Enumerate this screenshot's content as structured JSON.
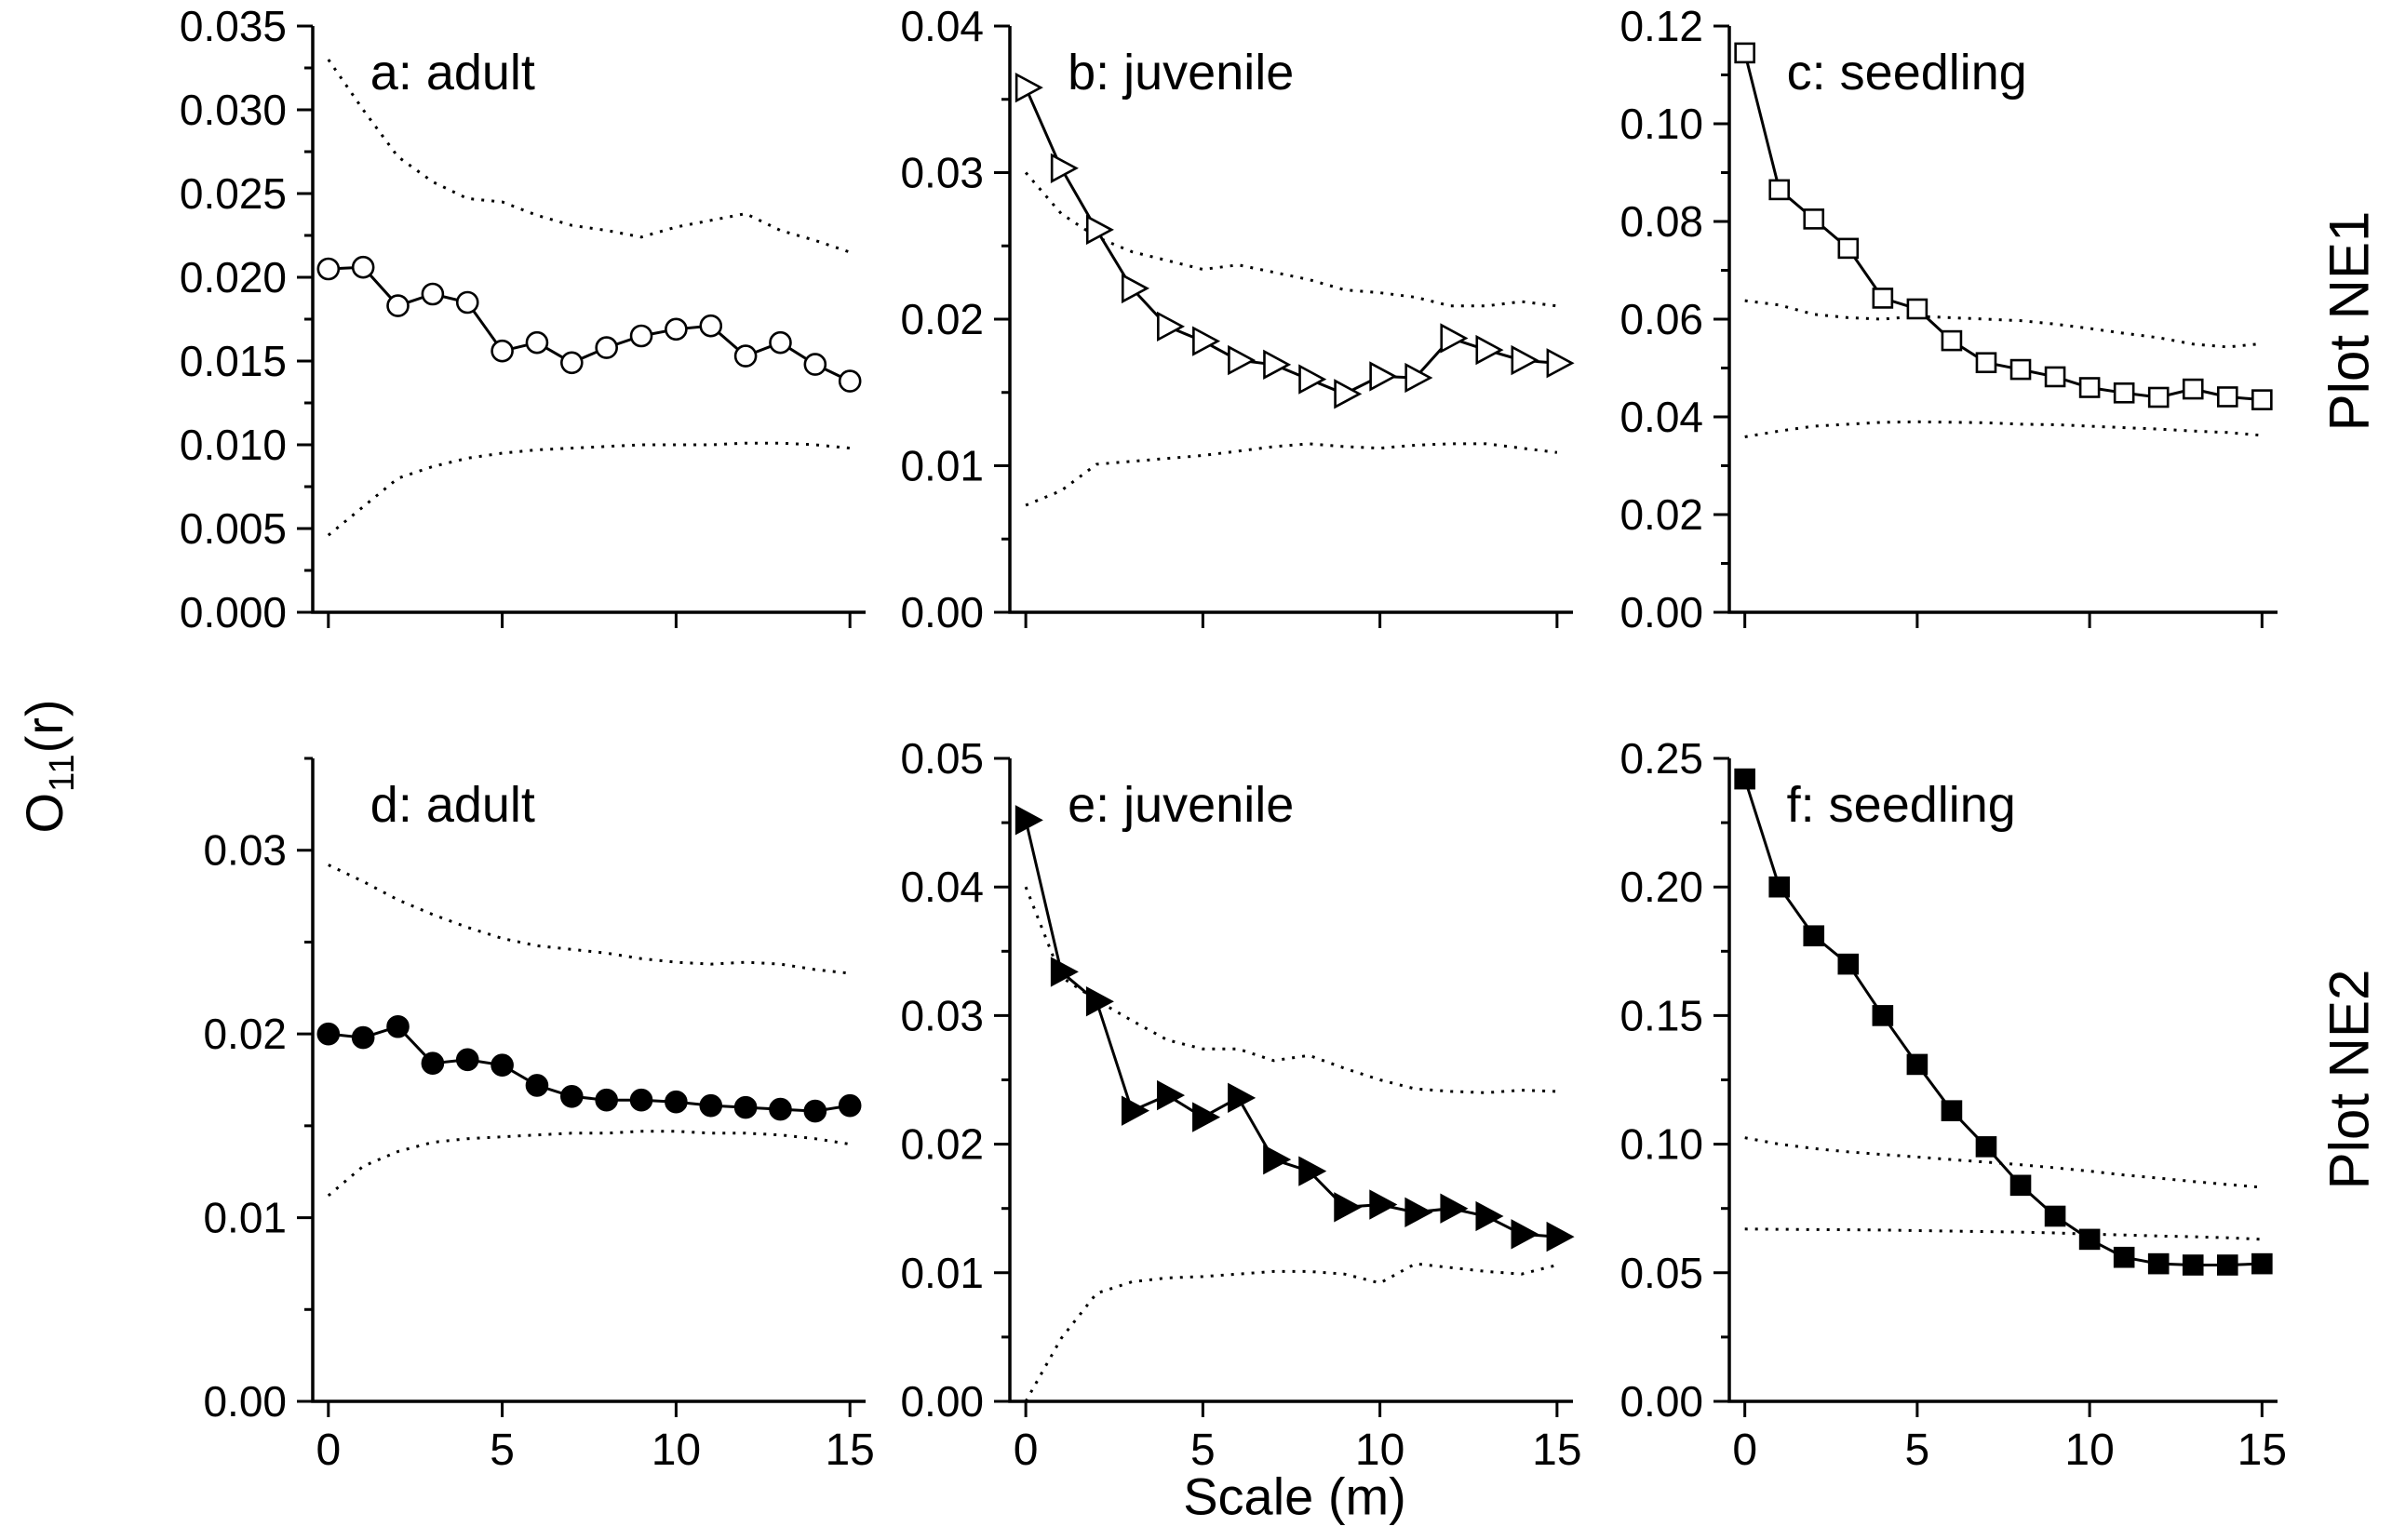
{
  "figure": {
    "xlabel": "Scale (m)",
    "ylabel": {
      "main": "O",
      "sub": "11",
      "rest": "(r)"
    },
    "row_labels": [
      "Plot NE1",
      "Plot NE2"
    ],
    "colors": {
      "foreground": "#000000",
      "background": "#ffffff"
    },
    "envelope_style": "dotted",
    "legend": "none"
  },
  "chart_data": [
    {
      "id": "a",
      "type": "line",
      "title": "a: adult",
      "plot_row": "Plot NE1",
      "marker": "open-circle",
      "x": [
        0,
        1,
        2,
        3,
        4,
        5,
        6,
        7,
        8,
        9,
        10,
        11,
        12,
        13,
        14,
        15
      ],
      "series": [
        0.0205,
        0.0206,
        0.0183,
        0.019,
        0.0185,
        0.0156,
        0.0161,
        0.0149,
        0.0158,
        0.0165,
        0.0169,
        0.0171,
        0.0153,
        0.0161,
        0.0148,
        0.0138
      ],
      "upper_envelope": [
        0.033,
        0.03,
        0.0272,
        0.0257,
        0.0247,
        0.0245,
        0.0237,
        0.0231,
        0.0228,
        0.0224,
        0.023,
        0.0234,
        0.0238,
        0.0228,
        0.0222,
        0.0215
      ],
      "lower_envelope": [
        0.0046,
        0.0063,
        0.008,
        0.0087,
        0.0092,
        0.0095,
        0.0097,
        0.0098,
        0.0099,
        0.01,
        0.01,
        0.01,
        0.0101,
        0.0101,
        0.01,
        0.0098
      ],
      "ylim": [
        0,
        0.035
      ],
      "ytick_step": 0.005,
      "yminor_step": 0.0025,
      "ytick_labels": [
        "0.000",
        "0.005",
        "0.010",
        "0.015",
        "0.020",
        "0.025",
        "0.030",
        "0.035"
      ],
      "xticks": [
        0,
        5,
        10,
        15
      ],
      "xtick_labels": [
        "0",
        "5",
        "10",
        "15"
      ],
      "show_xtick_labels": false
    },
    {
      "id": "b",
      "type": "line",
      "title": "b: juvenile",
      "plot_row": "Plot NE1",
      "marker": "open-triangle-right",
      "x": [
        0,
        1,
        2,
        3,
        4,
        5,
        6,
        7,
        8,
        9,
        10,
        11,
        12,
        13,
        14,
        15
      ],
      "series": [
        0.0358,
        0.0303,
        0.0261,
        0.0221,
        0.0195,
        0.0185,
        0.0172,
        0.0169,
        0.0159,
        0.0149,
        0.0161,
        0.016,
        0.0187,
        0.0179,
        0.0172,
        0.017
      ],
      "upper_envelope": [
        0.03,
        0.0272,
        0.0256,
        0.0246,
        0.024,
        0.0234,
        0.0237,
        0.0232,
        0.0227,
        0.022,
        0.0218,
        0.0215,
        0.0209,
        0.0209,
        0.0212,
        0.0209
      ],
      "lower_envelope": [
        0.0073,
        0.0083,
        0.0101,
        0.0103,
        0.0105,
        0.0107,
        0.011,
        0.0113,
        0.0115,
        0.0113,
        0.0112,
        0.0114,
        0.0115,
        0.0115,
        0.0112,
        0.0109
      ],
      "ylim": [
        0,
        0.04
      ],
      "ytick_step": 0.01,
      "yminor_step": 0.005,
      "ytick_labels": [
        "0.00",
        "0.01",
        "0.02",
        "0.03",
        "0.04"
      ],
      "xticks": [
        0,
        5,
        10,
        15
      ],
      "xtick_labels": [
        "0",
        "5",
        "10",
        "15"
      ],
      "show_xtick_labels": false
    },
    {
      "id": "c",
      "type": "line",
      "title": "c: seedling",
      "plot_row": "Plot NE1",
      "marker": "open-square",
      "x": [
        0,
        1,
        2,
        3,
        4,
        5,
        6,
        7,
        8,
        9,
        10,
        11,
        12,
        13,
        14,
        15
      ],
      "series": [
        0.1145,
        0.0865,
        0.0805,
        0.0745,
        0.0643,
        0.0621,
        0.0556,
        0.0511,
        0.0497,
        0.0482,
        0.046,
        0.0449,
        0.044,
        0.0457,
        0.0441,
        0.0435
      ],
      "upper_envelope": [
        0.0638,
        0.0629,
        0.061,
        0.0603,
        0.06,
        0.0606,
        0.0603,
        0.06,
        0.0597,
        0.059,
        0.0581,
        0.0571,
        0.0562,
        0.0549,
        0.0543,
        0.055
      ],
      "lower_envelope": [
        0.0359,
        0.0371,
        0.0381,
        0.0385,
        0.0389,
        0.039,
        0.0389,
        0.0388,
        0.0385,
        0.0384,
        0.0381,
        0.0378,
        0.0375,
        0.0371,
        0.0368,
        0.0362
      ],
      "ylim": [
        0,
        0.12
      ],
      "ytick_step": 0.02,
      "yminor_step": 0.01,
      "ytick_labels": [
        "0.00",
        "0.02",
        "0.04",
        "0.06",
        "0.08",
        "0.10",
        "0.12"
      ],
      "xticks": [
        0,
        5,
        10,
        15
      ],
      "xtick_labels": [
        "0",
        "5",
        "10",
        "15"
      ],
      "show_xtick_labels": false
    },
    {
      "id": "d",
      "type": "line",
      "title": "d: adult",
      "plot_row": "Plot NE2",
      "marker": "filled-circle",
      "x": [
        0,
        1,
        2,
        3,
        4,
        5,
        6,
        7,
        8,
        9,
        10,
        11,
        12,
        13,
        14,
        15
      ],
      "series": [
        0.02,
        0.0198,
        0.0204,
        0.0184,
        0.0186,
        0.0183,
        0.0172,
        0.0166,
        0.0164,
        0.0164,
        0.0163,
        0.0161,
        0.016,
        0.0159,
        0.0158,
        0.0161
      ],
      "upper_envelope": [
        0.0292,
        0.0283,
        0.0273,
        0.0265,
        0.0258,
        0.0252,
        0.0248,
        0.0246,
        0.0244,
        0.0241,
        0.0239,
        0.0238,
        0.0239,
        0.0238,
        0.0235,
        0.0233
      ],
      "lower_envelope": [
        0.0112,
        0.0128,
        0.0136,
        0.0141,
        0.0143,
        0.0144,
        0.0145,
        0.0146,
        0.0146,
        0.0147,
        0.0147,
        0.0146,
        0.0146,
        0.0145,
        0.0143,
        0.014
      ],
      "ylim": [
        0,
        0.035
      ],
      "ytick_step": 0.01,
      "yminor_step": 0.005,
      "ytick_labels": [
        "0.00",
        "0.01",
        "0.02",
        "0.03"
      ],
      "xticks": [
        0,
        5,
        10,
        15
      ],
      "xtick_labels": [
        "0",
        "5",
        "10",
        "15"
      ],
      "show_xtick_labels": true
    },
    {
      "id": "e",
      "type": "line",
      "title": "e: juvenile",
      "plot_row": "Plot NE2",
      "marker": "filled-triangle-right",
      "x": [
        0,
        1,
        2,
        3,
        4,
        5,
        6,
        7,
        8,
        9,
        10,
        11,
        12,
        13,
        14,
        15
      ],
      "series": [
        0.0452,
        0.0334,
        0.0311,
        0.0226,
        0.0238,
        0.0221,
        0.0236,
        0.0188,
        0.0179,
        0.0151,
        0.0153,
        0.0147,
        0.015,
        0.0144,
        0.013,
        0.0128
      ],
      "upper_envelope": [
        0.04,
        0.033,
        0.0312,
        0.0296,
        0.0281,
        0.0274,
        0.0274,
        0.0265,
        0.0269,
        0.0259,
        0.025,
        0.0243,
        0.0241,
        0.024,
        0.0242,
        0.0241
      ],
      "lower_envelope": [
        0.0,
        0.0049,
        0.0084,
        0.0093,
        0.0096,
        0.0097,
        0.0099,
        0.0101,
        0.0101,
        0.0099,
        0.0092,
        0.0107,
        0.0104,
        0.0101,
        0.0099,
        0.0106
      ],
      "ylim": [
        0,
        0.05
      ],
      "ytick_step": 0.01,
      "yminor_step": 0.005,
      "ytick_labels": [
        "0.00",
        "0.01",
        "0.02",
        "0.03",
        "0.04",
        "0.05"
      ],
      "xticks": [
        0,
        5,
        10,
        15
      ],
      "xtick_labels": [
        "0",
        "5",
        "10",
        "15"
      ],
      "show_xtick_labels": true
    },
    {
      "id": "f",
      "type": "line",
      "title": "f: seedling",
      "plot_row": "Plot NE2",
      "marker": "filled-square",
      "x": [
        0,
        1,
        2,
        3,
        4,
        5,
        6,
        7,
        8,
        9,
        10,
        11,
        12,
        13,
        14,
        15
      ],
      "series": [
        0.242,
        0.2,
        0.181,
        0.17,
        0.15,
        0.131,
        0.113,
        0.099,
        0.084,
        0.072,
        0.063,
        0.056,
        0.0535,
        0.053,
        0.053,
        0.0535
      ],
      "upper_envelope": [
        0.1025,
        0.1,
        0.0983,
        0.097,
        0.096,
        0.095,
        0.094,
        0.093,
        0.092,
        0.0908,
        0.0895,
        0.088,
        0.0868,
        0.0855,
        0.0843,
        0.0832
      ],
      "lower_envelope": [
        0.067,
        0.0669,
        0.0668,
        0.0667,
        0.0666,
        0.0664,
        0.0662,
        0.066,
        0.0658,
        0.0655,
        0.065,
        0.0647,
        0.0643,
        0.064,
        0.0636,
        0.063
      ],
      "ylim": [
        0,
        0.25
      ],
      "ytick_step": 0.05,
      "yminor_step": 0.025,
      "ytick_labels": [
        "0.00",
        "0.05",
        "0.10",
        "0.15",
        "0.20",
        "0.25"
      ],
      "xticks": [
        0,
        5,
        10,
        15
      ],
      "xtick_labels": [
        "0",
        "5",
        "10",
        "15"
      ],
      "show_xtick_labels": true
    }
  ]
}
